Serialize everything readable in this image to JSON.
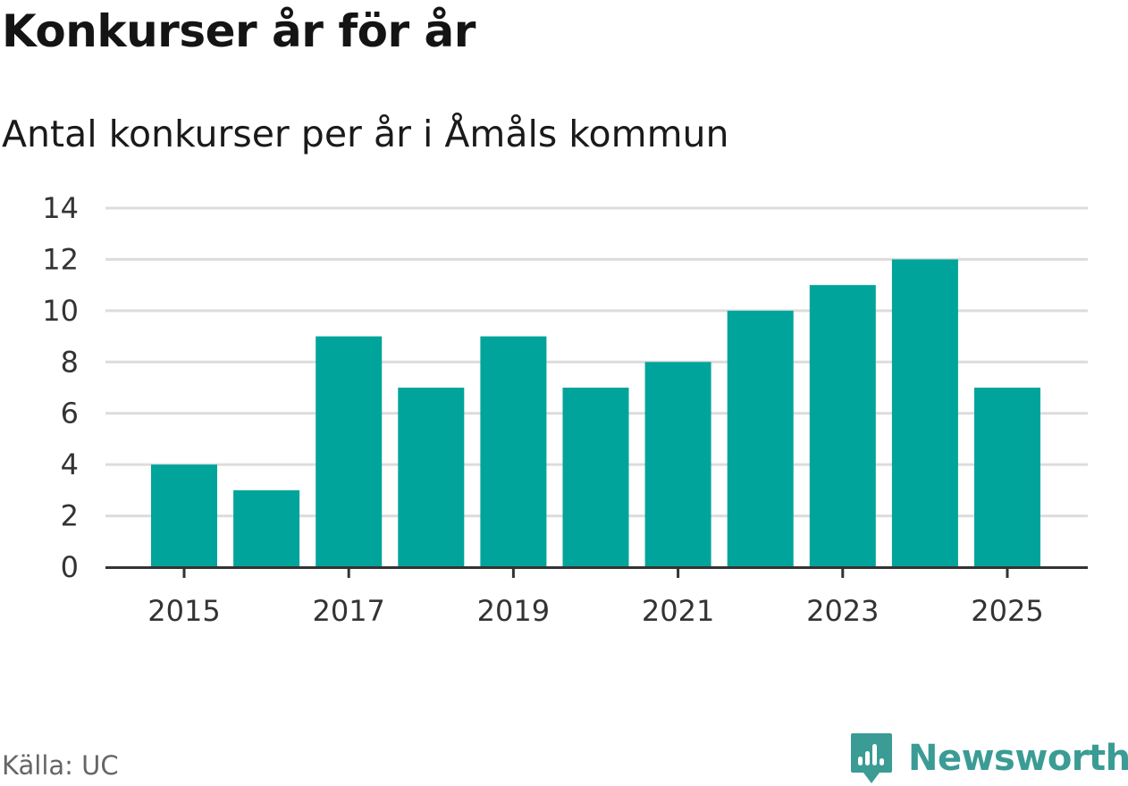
{
  "header": {
    "title": "Konkurser år för år",
    "subtitle": "Antal konkurser per år i Åmåls kommun"
  },
  "footer": {
    "source": "Källa: UC",
    "brand_name": "Newsworthy",
    "brand_icon": "newsworthy-logo-icon"
  },
  "colors": {
    "bar": "#00a49b",
    "grid": "#dcdcdc",
    "axis": "#333333",
    "brand": "#3a9c94"
  },
  "chart_data": {
    "type": "bar",
    "categories": [
      "2015",
      "2016",
      "2017",
      "2018",
      "2019",
      "2020",
      "2021",
      "2022",
      "2023",
      "2024",
      "2025"
    ],
    "values": [
      4,
      3,
      9,
      7,
      9,
      7,
      8,
      10,
      11,
      12,
      7
    ],
    "x_tick_labels": [
      "2015",
      "2017",
      "2019",
      "2021",
      "2023",
      "2025"
    ],
    "y_ticks": [
      0,
      2,
      4,
      6,
      8,
      10,
      12,
      14
    ],
    "ylim": [
      0,
      14
    ],
    "xlabel": "",
    "ylabel": "",
    "grid": true,
    "legend": "none"
  }
}
